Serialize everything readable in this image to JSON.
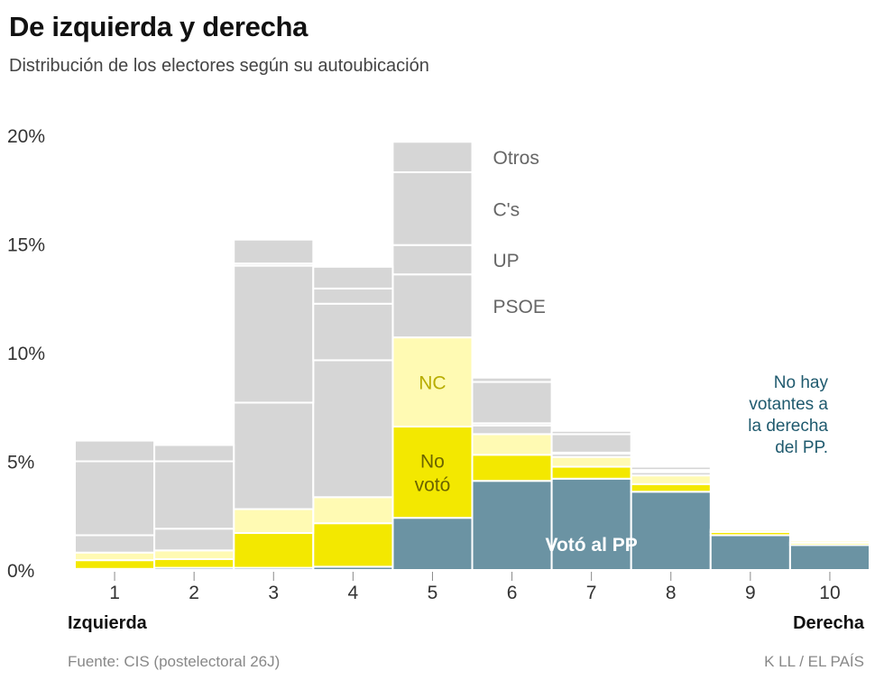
{
  "title": "De izquierda y derecha",
  "subtitle": "Distribución de los electores según su autoubicación",
  "source": "Fuente: CIS (postelectoral 26J)",
  "credit": "K LL  /  EL PAÍS",
  "chart_data": {
    "type": "stacked-bar",
    "title": "De izquierda y derecha",
    "subtitle": "Distribución de los electores según su autoubicación",
    "categories": [
      "1",
      "2",
      "3",
      "4",
      "5",
      "6",
      "7",
      "8",
      "9",
      "10"
    ],
    "xlabel_left": "Izquierda",
    "xlabel_right": "Derecha",
    "ylim": [
      0,
      20
    ],
    "yticks": [
      0,
      5,
      10,
      15,
      20
    ],
    "ytick_labels": [
      "0%",
      "5%",
      "10%",
      "15%",
      "20%"
    ],
    "series": [
      {
        "name": "Votó al PP",
        "label": "Votó al PP",
        "color": "#6b93a3",
        "values": [
          0.05,
          0.1,
          0.1,
          0.15,
          2.4,
          4.1,
          4.2,
          3.6,
          1.6,
          1.15
        ]
      },
      {
        "name": "No votó",
        "label": "No\nvotó",
        "color": "#f3e800",
        "values": [
          0.4,
          0.4,
          1.6,
          2.0,
          4.2,
          1.2,
          0.55,
          0.35,
          0.15,
          0.1
        ]
      },
      {
        "name": "NC",
        "label": "NC",
        "color": "#fffab3",
        "values": [
          0.35,
          0.4,
          1.1,
          1.2,
          4.1,
          0.95,
          0.45,
          0.4,
          0.1,
          0.1
        ]
      },
      {
        "name": "PSOE",
        "label": "PSOE",
        "color": "#d6d6d6",
        "values": [
          0.8,
          1.0,
          4.9,
          6.3,
          2.9,
          0.4,
          0.15,
          0.15,
          0.0,
          0.0
        ]
      },
      {
        "name": "UP",
        "label": "UP",
        "color": "#d6d6d6",
        "values": [
          3.4,
          3.1,
          6.3,
          2.6,
          1.35,
          0.1,
          0.05,
          0.05,
          0.0,
          0.0
        ]
      },
      {
        "name": "C's",
        "label": "C's",
        "color": "#d6d6d6",
        "values": [
          0.0,
          0.0,
          0.1,
          0.7,
          3.35,
          1.9,
          0.85,
          0.05,
          0.0,
          0.0
        ]
      },
      {
        "name": "Otros",
        "label": "Otros",
        "color": "#d6d6d6",
        "values": [
          0.95,
          0.75,
          1.1,
          1.0,
          1.4,
          0.2,
          0.15,
          0.15,
          0.0,
          0.0
        ]
      }
    ],
    "annotation": "No hay votantes a la derecha del PP.",
    "annotation_lines": [
      "No hay",
      "votantes a",
      "la derecha",
      "del PP."
    ]
  }
}
